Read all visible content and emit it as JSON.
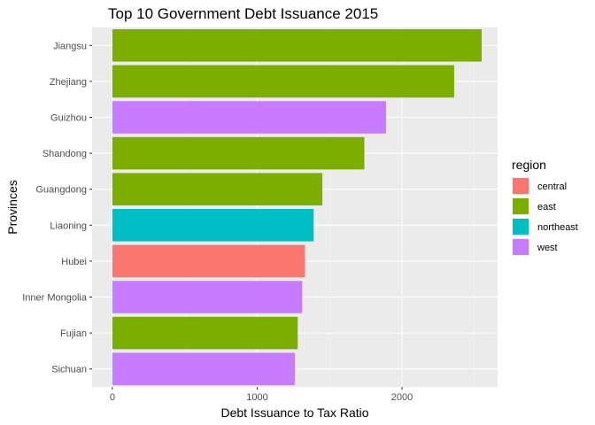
{
  "chart_data": {
    "type": "bar",
    "orientation": "horizontal",
    "title": "Top 10 Government Debt Issuance 2015",
    "xlabel": "Debt Issuance to Tax Ratio",
    "ylabel": "Provinces",
    "xlim": [
      -140,
      2660
    ],
    "xticks": [
      0,
      1000,
      2000
    ],
    "grid": true,
    "legend_position": "right",
    "legend_title": "region",
    "legend": [
      {
        "name": "central",
        "color": "#F8766D"
      },
      {
        "name": "east",
        "color": "#7CAE00"
      },
      {
        "name": "northeast",
        "color": "#00BFC4"
      },
      {
        "name": "west",
        "color": "#C77CFF"
      }
    ],
    "categories": [
      "Jiangsu",
      "Zhejiang",
      "Guizhou",
      "Shandong",
      "Guangdong",
      "Liaoning",
      "Hubei",
      "Inner Mongolia",
      "Fujian",
      "Sichuan"
    ],
    "values": [
      2550,
      2360,
      1890,
      1740,
      1450,
      1390,
      1330,
      1310,
      1280,
      1260
    ],
    "regions": [
      "east",
      "east",
      "west",
      "east",
      "east",
      "northeast",
      "central",
      "west",
      "east",
      "west"
    ]
  }
}
